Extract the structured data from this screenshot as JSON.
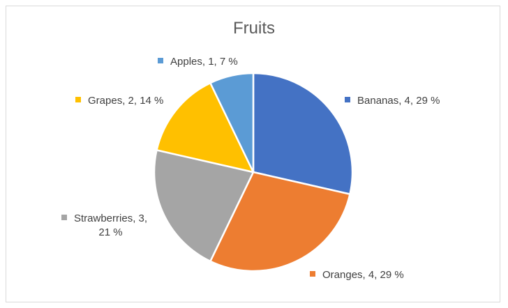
{
  "chart_data": {
    "type": "pie",
    "title": "Fruits",
    "categories": [
      "Bananas",
      "Oranges",
      "Strawberries",
      "Grapes",
      "Apples"
    ],
    "values": [
      4,
      4,
      3,
      2,
      1
    ],
    "percentages": [
      29,
      29,
      21,
      14,
      7
    ],
    "colors": [
      "#4472c4",
      "#ed7d31",
      "#a5a5a5",
      "#ffc000",
      "#5b9bd5"
    ],
    "labels": [
      "Bananas, 4, 29 %",
      "Oranges, 4, 29 %",
      "Strawberries, 3,",
      "Grapes, 2, 14 %",
      "Apples, 1, 7 %"
    ],
    "label_extra": {
      "strawberries_line2": "21 %"
    },
    "legend": "none (data labels with category name, value, percentage)"
  }
}
